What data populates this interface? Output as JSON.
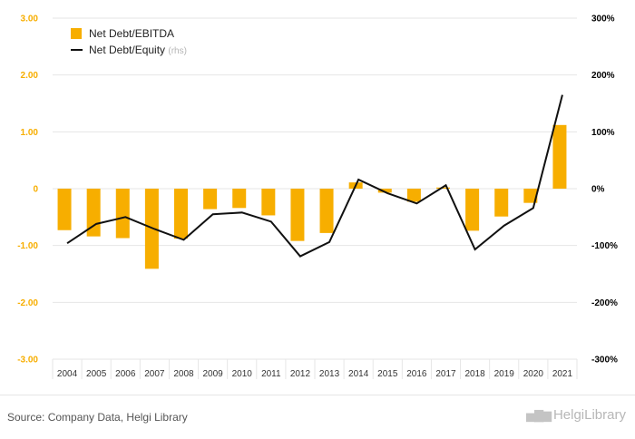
{
  "chart_data": {
    "type": "bar",
    "categories": [
      "2004",
      "2005",
      "2006",
      "2007",
      "2008",
      "2009",
      "2010",
      "2011",
      "2012",
      "2013",
      "2014",
      "2015",
      "2016",
      "2017",
      "2018",
      "2019",
      "2020",
      "2021"
    ],
    "series": [
      {
        "name": "Net Debt/EBITDA",
        "type": "bar",
        "axis": "left",
        "color": "#f7ae00",
        "values": [
          -0.73,
          -0.84,
          -0.87,
          -1.41,
          -0.88,
          -0.36,
          -0.34,
          -0.47,
          -0.92,
          -0.78,
          0.11,
          -0.07,
          -0.23,
          0.02,
          -0.74,
          -0.49,
          -0.25,
          1.12
        ]
      },
      {
        "name": "Net Debt/Equity",
        "type": "line",
        "axis": "right",
        "color": "#111111",
        "values": [
          -96,
          -62,
          -50,
          -71,
          -90,
          -45,
          -42,
          -58,
          -119,
          -94,
          16,
          -8,
          -26,
          6,
          -107,
          -65,
          -34,
          165
        ]
      }
    ],
    "legend": [
      {
        "label": "Net Debt/EBITDA",
        "suffix": ""
      },
      {
        "label": "Net Debt/Equity",
        "suffix": "(rhs)"
      }
    ],
    "left_axis": {
      "ylim": [
        -3,
        3
      ],
      "ticks": [
        -3,
        -2,
        -1,
        0,
        1,
        2,
        3
      ],
      "tick_labels": [
        "-3.00",
        "-2.00",
        "-1.00",
        "0",
        "1.00",
        "2.00",
        "3.00"
      ],
      "color": "#f7ae00"
    },
    "right_axis": {
      "ylim": [
        -300,
        300
      ],
      "ticks": [
        -300,
        -200,
        -100,
        0,
        100,
        200,
        300
      ],
      "tick_labels": [
        "-300%",
        "-200%",
        "-100%",
        "0%",
        "100%",
        "200%",
        "300%"
      ],
      "color": "#000000"
    },
    "grid": true,
    "legend_position": "top-left"
  },
  "footer": {
    "source": "Source: Company Data, Helgi Library",
    "logo_mark": "▅▇▆",
    "logo_text": "HelgiLibrary"
  }
}
